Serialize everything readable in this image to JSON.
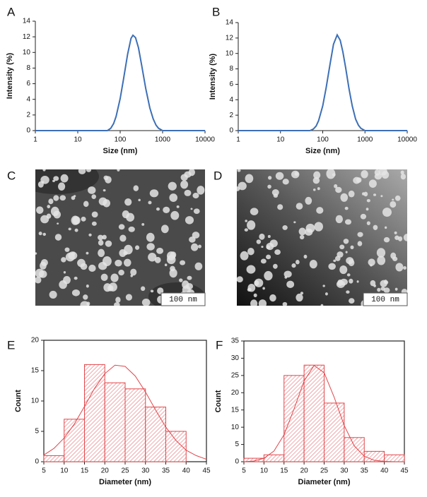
{
  "chart_data": [
    {
      "type": "line",
      "label": "A",
      "xlabel": "Size (nm)",
      "ylabel": "Intensity (%)",
      "log_x": true,
      "xlim": [
        1,
        10000
      ],
      "xticks": [
        1,
        10,
        100,
        1000,
        10000
      ],
      "ylim": [
        0,
        14
      ],
      "yticks": [
        0,
        2,
        4,
        6,
        8,
        10,
        12,
        14
      ],
      "color": "#3d6fb6",
      "x": [
        1,
        10,
        50,
        60,
        70,
        80,
        100,
        120,
        150,
        180,
        200,
        230,
        270,
        320,
        400,
        500,
        600,
        700,
        800,
        1000,
        10000
      ],
      "values": [
        0,
        0,
        0,
        0.3,
        0.9,
        1.8,
        4.1,
        6.6,
        9.8,
        11.8,
        12.2,
        11.9,
        10.6,
        8.4,
        5.4,
        2.9,
        1.5,
        0.7,
        0.3,
        0,
        0
      ]
    },
    {
      "type": "line",
      "label": "B",
      "xlabel": "Size (nm)",
      "ylabel": "Intensity (%)",
      "log_x": true,
      "xlim": [
        1,
        10000
      ],
      "xticks": [
        1,
        10,
        100,
        1000,
        10000
      ],
      "ylim": [
        0,
        14
      ],
      "yticks": [
        0,
        2,
        4,
        6,
        8,
        10,
        12,
        14
      ],
      "color": "#3d6fb6",
      "x": [
        1,
        10,
        50,
        60,
        70,
        80,
        100,
        120,
        150,
        180,
        220,
        260,
        300,
        350,
        420,
        500,
        600,
        700,
        800,
        1000,
        10000
      ],
      "values": [
        0,
        0,
        0,
        0.2,
        0.6,
        1.3,
        3.2,
        5.5,
        8.7,
        11.2,
        12.4,
        11.7,
        10.2,
        8.1,
        5.4,
        3.2,
        1.5,
        0.7,
        0.3,
        0,
        0
      ]
    },
    {
      "type": "histogram",
      "label": "E",
      "xlabel": "Diameter (nm)",
      "ylabel": "Count",
      "xlim": [
        5,
        45
      ],
      "xticks": [
        5,
        10,
        15,
        20,
        25,
        30,
        35,
        40,
        45
      ],
      "ylim": [
        0,
        20
      ],
      "yticks": [
        0,
        5,
        10,
        15,
        20
      ],
      "color": "#e0464b",
      "bins": [
        5,
        10,
        15,
        20,
        25,
        30,
        35,
        40
      ],
      "values": [
        1,
        7,
        16,
        13,
        12,
        9,
        5
      ],
      "fit": {
        "x": [
          5,
          7.5,
          10,
          12.5,
          15,
          17.5,
          20,
          22.5,
          25,
          27.5,
          30,
          32.5,
          35,
          37.5,
          40,
          42.5,
          45
        ],
        "values": [
          1.1,
          2.2,
          3.9,
          6.2,
          9.1,
          12.1,
          14.5,
          15.9,
          15.7,
          14.1,
          11.5,
          8.5,
          5.7,
          3.5,
          1.9,
          1.0,
          0.4
        ]
      }
    },
    {
      "type": "histogram",
      "label": "F",
      "xlabel": "Diameter (nm)",
      "ylabel": "Count",
      "xlim": [
        5,
        45
      ],
      "xticks": [
        5,
        10,
        15,
        20,
        25,
        30,
        35,
        40,
        45
      ],
      "ylim": [
        0,
        35
      ],
      "yticks": [
        0,
        5,
        10,
        15,
        20,
        25,
        30,
        35
      ],
      "color": "#e0464b",
      "bins": [
        5,
        10,
        15,
        20,
        25,
        30,
        35,
        40,
        45
      ],
      "values": [
        1,
        2,
        25,
        28,
        17,
        7,
        3,
        2
      ],
      "fit": {
        "x": [
          5,
          7.5,
          10,
          12.5,
          15,
          17.5,
          20,
          22.5,
          25,
          27.5,
          30,
          32.5,
          35,
          37.5,
          40,
          42.5,
          45
        ],
        "values": [
          0,
          0.2,
          1.0,
          3.1,
          7.8,
          15.3,
          23.4,
          27.9,
          25.8,
          18.7,
          10.5,
          4.6,
          1.6,
          0.4,
          0.1,
          0,
          0
        ]
      }
    }
  ],
  "images": [
    {
      "label": "C",
      "scale_bar": "100 nm"
    },
    {
      "label": "D",
      "scale_bar": "100 nm"
    }
  ]
}
